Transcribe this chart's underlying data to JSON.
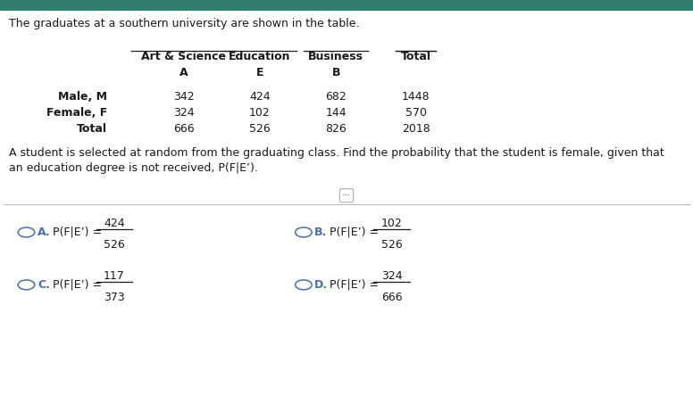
{
  "bg_color": "#ffffff",
  "header_bar_color": "#2e7d6e",
  "intro_text": "The graduates at a southern university are shown in the table.",
  "col_headers_line1": [
    "Art & Science",
    "Education",
    "Business",
    "Total"
  ],
  "col_headers_line2": [
    "A",
    "E",
    "B",
    ""
  ],
  "row_headers": [
    "Male, M",
    "Female, F",
    "Total"
  ],
  "values": [
    [
      342,
      424,
      682,
      1448
    ],
    [
      324,
      102,
      144,
      570
    ],
    [
      666,
      526,
      826,
      2018
    ]
  ],
  "question_text1": "A student is selected at random from the graduating class. Find the probability that the student is female, given that",
  "question_text2": "an education degree is not received, P(F|E’).",
  "options": [
    {
      "label": "A.",
      "expr": "P(F|E’) =",
      "num": "424",
      "den": "526"
    },
    {
      "label": "B.",
      "expr": "P(F|E’) =",
      "num": "102",
      "den": "526"
    },
    {
      "label": "C.",
      "expr": "P(F|E’) =",
      "num": "117",
      "den": "373"
    },
    {
      "label": "D.",
      "expr": "P(F|E’) =",
      "num": "324",
      "den": "666"
    }
  ],
  "label_color": "#4a6fa5",
  "text_color": "#1a1a1a",
  "underline_cols": [
    true,
    true,
    true,
    true
  ]
}
